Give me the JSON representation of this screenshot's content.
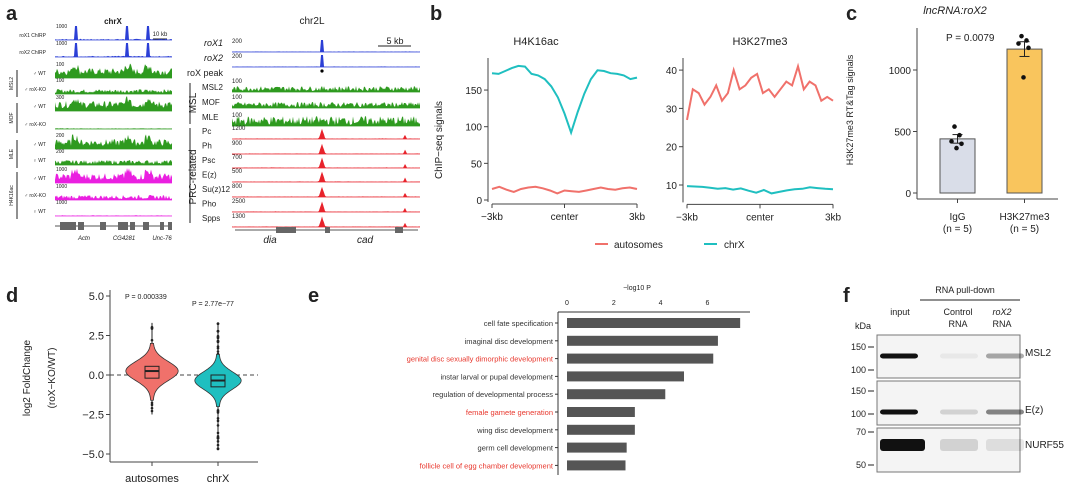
{
  "panel_labels": [
    "a",
    "b",
    "c",
    "d",
    "e",
    "f"
  ],
  "panel_a": {
    "left_title": "chrX",
    "left_scale": "10 kb",
    "left_tracks": [
      {
        "group": "",
        "label": "roX1 ChIRP",
        "max": "1000",
        "color": "#2b3fd6",
        "type": "peaks"
      },
      {
        "group": "",
        "label": "roX2 ChIRP",
        "max": "1000",
        "color": "#2b3fd6",
        "type": "peaks"
      },
      {
        "group": "MSL2",
        "label": "♂ WT",
        "max": "100",
        "color": "#2e9a1f",
        "type": "dense"
      },
      {
        "group": "MSL2",
        "label": "♂ roX-KO",
        "max": "100",
        "color": "#2e9a1f",
        "type": "low"
      },
      {
        "group": "MOF",
        "label": "♂ WT",
        "max": "300",
        "color": "#2e9a1f",
        "type": "dense"
      },
      {
        "group": "MOF",
        "label": "♂ roX-KO",
        "max": "",
        "color": "#2e9a1f",
        "type": "flat"
      },
      {
        "group": "MLE",
        "label": "♂ WT",
        "max": "200",
        "color": "#2e9a1f",
        "type": "dense"
      },
      {
        "group": "MLE",
        "label": "♀ WT",
        "max": "200",
        "color": "#2e9a1f",
        "type": "low"
      },
      {
        "group": "H4K16ac",
        "label": "♂ WT",
        "max": "1000",
        "color": "#ea1fe0",
        "type": "dense"
      },
      {
        "group": "H4K16ac",
        "label": "♂ roX-KO",
        "max": "1000",
        "color": "#ea1fe0",
        "type": "low"
      },
      {
        "group": "H4K16ac",
        "label": "♀ WT",
        "max": "1000",
        "color": "#ea1fe0",
        "type": "flat"
      }
    ],
    "left_genes": [
      "Actn",
      "CG4281",
      "Unc-76"
    ],
    "right_title": "chr2L",
    "right_scale": "5 kb",
    "right_top_labels": [
      "roX1",
      "roX2",
      "roX peak"
    ],
    "msl_group": "MSL",
    "msl_labels": [
      "MSL2",
      "MOF",
      "MLE"
    ],
    "prc_group": "PRC-related",
    "prc_labels": [
      "Pc",
      "Ph",
      "Psc",
      "E(z)",
      "Su(z)12",
      "Pho",
      "Spps"
    ],
    "right_maxes": [
      "200",
      "200",
      "100",
      "100",
      "100",
      "1200",
      "900",
      "700",
      "500",
      "800",
      "2500",
      "1300"
    ],
    "right_genes": [
      "dia",
      "cad"
    ],
    "colors": {
      "chirp": "#2b3fd6",
      "msl": "#2e9a1f",
      "prc": "#e8232b"
    }
  },
  "chart_data": [
    {
      "panel": "b",
      "type": "line",
      "title": "H4K16ac",
      "ylabel": "ChIP−seq signals",
      "xlabel": "",
      "x_ticks": [
        "−3kb",
        "center",
        "3kb"
      ],
      "y_ticks": [
        0,
        50,
        100,
        150
      ],
      "ylim": [
        0,
        190
      ],
      "series": [
        {
          "name": "autosomes",
          "color": "#f0716b",
          "values": [
            15,
            18,
            14,
            11,
            15,
            17,
            18,
            16,
            13,
            9,
            13,
            12,
            11,
            13,
            15,
            17,
            15,
            14,
            16,
            17,
            15
          ]
        },
        {
          "name": "chrX",
          "color": "#1fbfc0",
          "values": [
            173,
            172,
            176,
            180,
            183,
            182,
            172,
            170,
            165,
            155,
            140,
            118,
            92,
            120,
            145,
            165,
            177,
            176,
            173,
            172,
            170,
            165,
            167
          ]
        }
      ]
    },
    {
      "panel": "b",
      "type": "line",
      "title": "H3K27me3",
      "x_ticks": [
        "−3kb",
        "center",
        "3kb"
      ],
      "y_ticks": [
        10,
        20,
        30,
        40
      ],
      "ylim": [
        6,
        43
      ],
      "series": [
        {
          "name": "autosomes",
          "color": "#f0716b",
          "values": [
            27,
            35,
            34,
            31,
            33,
            36,
            32,
            34,
            40,
            35,
            36,
            38,
            39,
            34,
            35,
            33,
            35,
            37,
            36,
            41,
            35,
            37,
            36,
            32,
            33,
            32
          ]
        },
        {
          "name": "chrX",
          "color": "#1fbfc0",
          "values": [
            9.7,
            9.6,
            9.5,
            9.3,
            9.0,
            9.2,
            8.8,
            9.1,
            8.5,
            8.0,
            8.7,
            7.8,
            8.2,
            8.6,
            8.9,
            9.0,
            9.4,
            9.2,
            9.0,
            8.9
          ]
        }
      ],
      "legend": "bottom"
    },
    {
      "panel": "c",
      "type": "bar",
      "title": "lncRNA:roX2",
      "ylabel": "H3K27me3 RT&Tag signals",
      "categories": [
        "IgG",
        "H3K27me3"
      ],
      "category_n": [
        "(n = 5)",
        "(n = 5)"
      ],
      "values": [
        440,
        1170
      ],
      "errors": [
        35,
        60
      ],
      "points": [
        [
          540,
          470,
          420,
          400,
          365
        ],
        [
          1275,
          1240,
          1215,
          1180,
          940
        ]
      ],
      "colors": [
        "#d9dde8",
        "#f9c55d"
      ],
      "y_ticks": [
        0,
        500,
        1000
      ],
      "ylim": [
        0,
        1350
      ],
      "annotation": "P = 0.0079"
    },
    {
      "panel": "d",
      "type": "violin",
      "ylabel_line1": "log2 FoldChange",
      "ylabel_line2": "(roX−KO/WT)",
      "categories": [
        "autosomes",
        "chrX"
      ],
      "medians": [
        0.25,
        -0.35
      ],
      "q1": [
        -0.2,
        -0.75
      ],
      "q3": [
        0.55,
        0.0
      ],
      "whisker_range": [
        [
          -2.5,
          3.3
        ],
        [
          -4.7,
          3.3
        ]
      ],
      "colors": [
        "#f0716b",
        "#1fbfc0"
      ],
      "p_values": [
        "P = 0.000339",
        "P = 2.77e−77"
      ],
      "y_ticks": [
        "5.0",
        "2.5",
        "0.0",
        "−2.5",
        "−5.0"
      ],
      "ylim": [
        -5.3,
        5.3
      ]
    },
    {
      "panel": "e",
      "type": "bar",
      "orientation": "horizontal",
      "xlabel": "−log10 P",
      "x_ticks": [
        0,
        2,
        4,
        6
      ],
      "categories": [
        "cell fate specification",
        "imaginal disc development",
        "genital disc sexually dimorphic development",
        "instar larval or pupal development",
        "regulation of developmental process",
        "female gamete generation",
        "wing disc development",
        "germ cell development",
        "follicle cell of egg chamber development"
      ],
      "highlighted": [
        false,
        false,
        true,
        false,
        false,
        true,
        false,
        false,
        true
      ],
      "values": [
        7.4,
        6.45,
        6.25,
        5.0,
        4.2,
        2.9,
        2.9,
        2.55,
        2.5
      ],
      "colors": {
        "bar": "#555555",
        "highlight": "#e8382e",
        "text": "#333333"
      }
    }
  ],
  "panel_f": {
    "header": "RNA pull-down",
    "lanes": [
      {
        "line1": "input",
        "line2": ""
      },
      {
        "line1": "Control",
        "line2": "RNA"
      },
      {
        "line1": "roX2",
        "line2": "RNA"
      }
    ],
    "unit": "kDa",
    "blots": [
      {
        "protein": "MSL2",
        "markers": [
          "150",
          "100"
        ],
        "bands": [
          1.0,
          0.05,
          0.35
        ]
      },
      {
        "protein": "E(z)",
        "markers": [
          "150",
          "100"
        ],
        "bands": [
          1.0,
          0.15,
          0.5
        ]
      },
      {
        "protein": "NURF55",
        "markers": [
          "70",
          "50"
        ],
        "bands": [
          1.0,
          0.15,
          0.1
        ]
      }
    ]
  }
}
